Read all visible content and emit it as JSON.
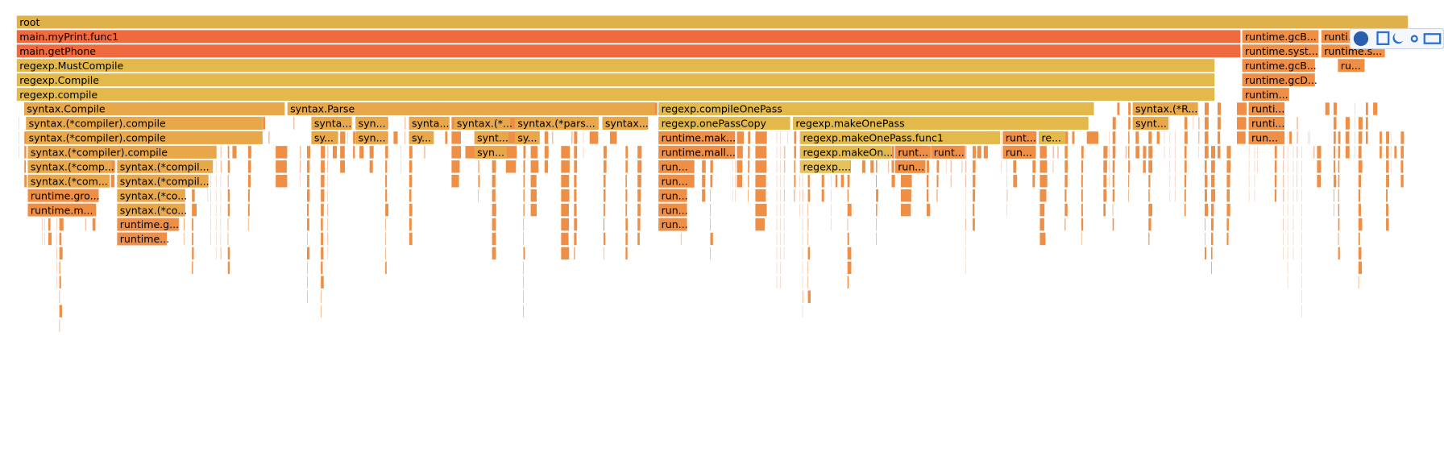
{
  "frames": [
    {
      "label": "root"
    },
    {
      "label": "main.myPrint.func1"
    },
    {
      "label": "runtime.gcB..."
    },
    {
      "label": "runti..."
    },
    {
      "label": "main.getPhone"
    },
    {
      "label": "runtime.syst..."
    },
    {
      "label": "runtime.s..."
    },
    {
      "label": "regexp.MustCompile"
    },
    {
      "label": "runtime.gcB..."
    },
    {
      "label": "ru..."
    },
    {
      "label": "regexp.Compile"
    },
    {
      "label": "runtime.gcD..."
    },
    {
      "label": "regexp.compile"
    },
    {
      "label": "runtim..."
    },
    {
      "label": "syntax.Compile"
    },
    {
      "label": "syntax.Parse"
    },
    {
      "label": "regexp.compileOnePass"
    },
    {
      "label": "syntax.(*R..."
    },
    {
      "label": "runti..."
    },
    {
      "label": "syntax.(*compiler).compile"
    },
    {
      "label": "synta..."
    },
    {
      "label": "syn..."
    },
    {
      "label": "synta..."
    },
    {
      "label": "syntax.(*..."
    },
    {
      "label": "syntax.(*pars..."
    },
    {
      "label": "syntax..."
    },
    {
      "label": "regexp.onePassCopy"
    },
    {
      "label": "regexp.makeOnePass"
    },
    {
      "label": "synt..."
    },
    {
      "label": "runti..."
    },
    {
      "label": "syntax.(*compiler).compile"
    },
    {
      "label": "sy..."
    },
    {
      "label": "syn..."
    },
    {
      "label": "sy..."
    },
    {
      "label": "synt..."
    },
    {
      "label": "sy..."
    },
    {
      "label": "runtime.mak..."
    },
    {
      "label": "regexp.makeOnePass.func1"
    },
    {
      "label": "runt..."
    },
    {
      "label": "re..."
    },
    {
      "label": "run..."
    },
    {
      "label": "syntax.(*compiler).compile"
    },
    {
      "label": "syn..."
    },
    {
      "label": "runtime.mall..."
    },
    {
      "label": "regexp.makeOn..."
    },
    {
      "label": "runt..."
    },
    {
      "label": "runt..."
    },
    {
      "label": "run..."
    },
    {
      "label": "syntax.(*comp..."
    },
    {
      "label": "syntax.(*compil..."
    },
    {
      "label": "run..."
    },
    {
      "label": "regexp...."
    },
    {
      "label": "run..."
    },
    {
      "label": "syntax.(*com..."
    },
    {
      "label": "syntax.(*compil..."
    },
    {
      "label": "run..."
    },
    {
      "label": "runtime.gro..."
    },
    {
      "label": "syntax.(*co..."
    },
    {
      "label": "run..."
    },
    {
      "label": "runtime.m..."
    },
    {
      "label": "syntax.(*co..."
    },
    {
      "label": "run..."
    },
    {
      "label": "runtime.g..."
    },
    {
      "label": "run..."
    },
    {
      "label": "runtime..."
    }
  ]
}
